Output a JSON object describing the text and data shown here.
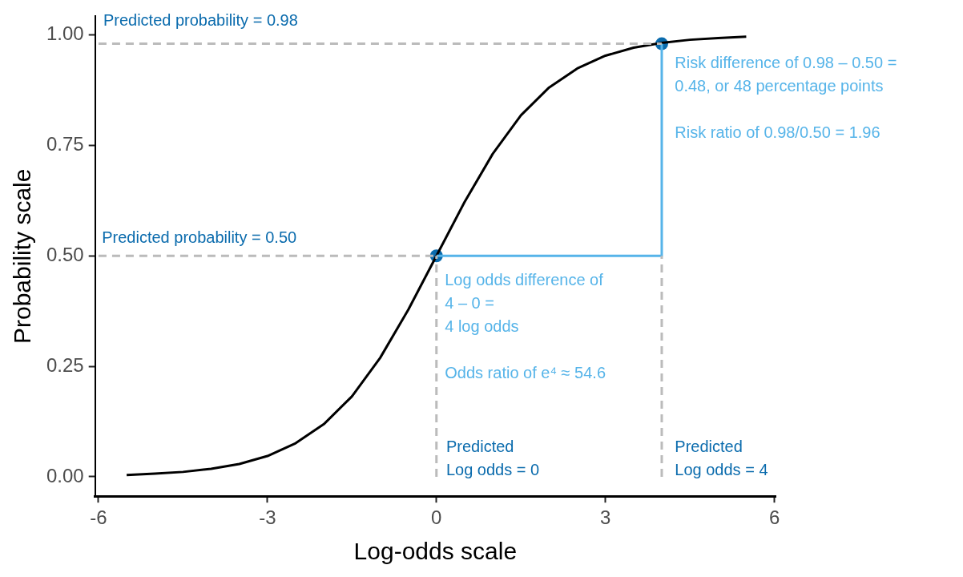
{
  "chart_data": {
    "type": "line",
    "xlabel": "Log-odds scale",
    "ylabel": "Probability scale",
    "xlim": [
      -6.06,
      6.02
    ],
    "ylim": [
      -0.044,
      1.042
    ],
    "xticks": [
      -6,
      -3,
      0,
      3,
      6
    ],
    "yticks": [
      {
        "value": 0,
        "label": "0.00"
      },
      {
        "value": 0.25,
        "label": "0.25"
      },
      {
        "value": 0.5,
        "label": "0.50"
      },
      {
        "value": 0.75,
        "label": "0.75"
      },
      {
        "value": 1,
        "label": "1.00"
      }
    ],
    "grid": false,
    "legend": false,
    "series": [
      {
        "color": "#bbbbbb",
        "line_style": "dashed",
        "marker": "none",
        "x": [
          -6,
          4
        ],
        "values": [
          0.98,
          0.98
        ]
      },
      {
        "color": "#bbbbbb",
        "line_style": "dashed",
        "marker": "none",
        "x": [
          -6,
          0
        ],
        "values": [
          0.5,
          0.5
        ]
      },
      {
        "color": "#bbbbbb",
        "line_style": "dashed",
        "marker": "none",
        "x": [
          0,
          0
        ],
        "values": [
          0,
          0.5
        ]
      },
      {
        "color": "#bbbbbb",
        "line_style": "dashed",
        "marker": "none",
        "x": [
          4,
          4
        ],
        "values": [
          0,
          0.5
        ]
      },
      {
        "color": "#56b4e9",
        "line_style": "solid",
        "marker": "none",
        "x": [
          0,
          4,
          4
        ],
        "values": [
          0.5,
          0.5,
          0.98
        ]
      },
      {
        "color": "#000000",
        "line_style": "solid",
        "marker": "none",
        "x": [
          -5.5,
          -5,
          -4.5,
          -4,
          -3.5,
          -3,
          -2.5,
          -2,
          -1.5,
          -1,
          -0.5,
          0,
          0.5,
          1,
          1.5,
          2,
          2.5,
          3,
          3.5,
          4,
          4.5,
          5,
          5.5
        ],
        "values": [
          0.004,
          0.007,
          0.011,
          0.018,
          0.029,
          0.047,
          0.076,
          0.119,
          0.182,
          0.269,
          0.378,
          0.5,
          0.622,
          0.731,
          0.818,
          0.881,
          0.924,
          0.953,
          0.971,
          0.982,
          0.989,
          0.993,
          0.996
        ]
      },
      {
        "type": "scatter",
        "color": "#0a6bad",
        "marker": "circle",
        "x": [
          0,
          4
        ],
        "values": [
          0.5,
          0.98
        ]
      }
    ],
    "annotations": [
      "Predicted probability = 0.98",
      "Predicted probability = 0.50",
      "Risk difference of 0.98 – 0.50 =\n0.48, or 48 percentage points\n\nRisk ratio of 0.98/0.50 = 1.96",
      "Log odds difference of\n4 – 0 =\n4 log odds\n\nOdds ratio of e⁴ ≈ 54.6",
      "Predicted\nLog odds = 0",
      "Predicted\nLog odds = 4"
    ]
  }
}
